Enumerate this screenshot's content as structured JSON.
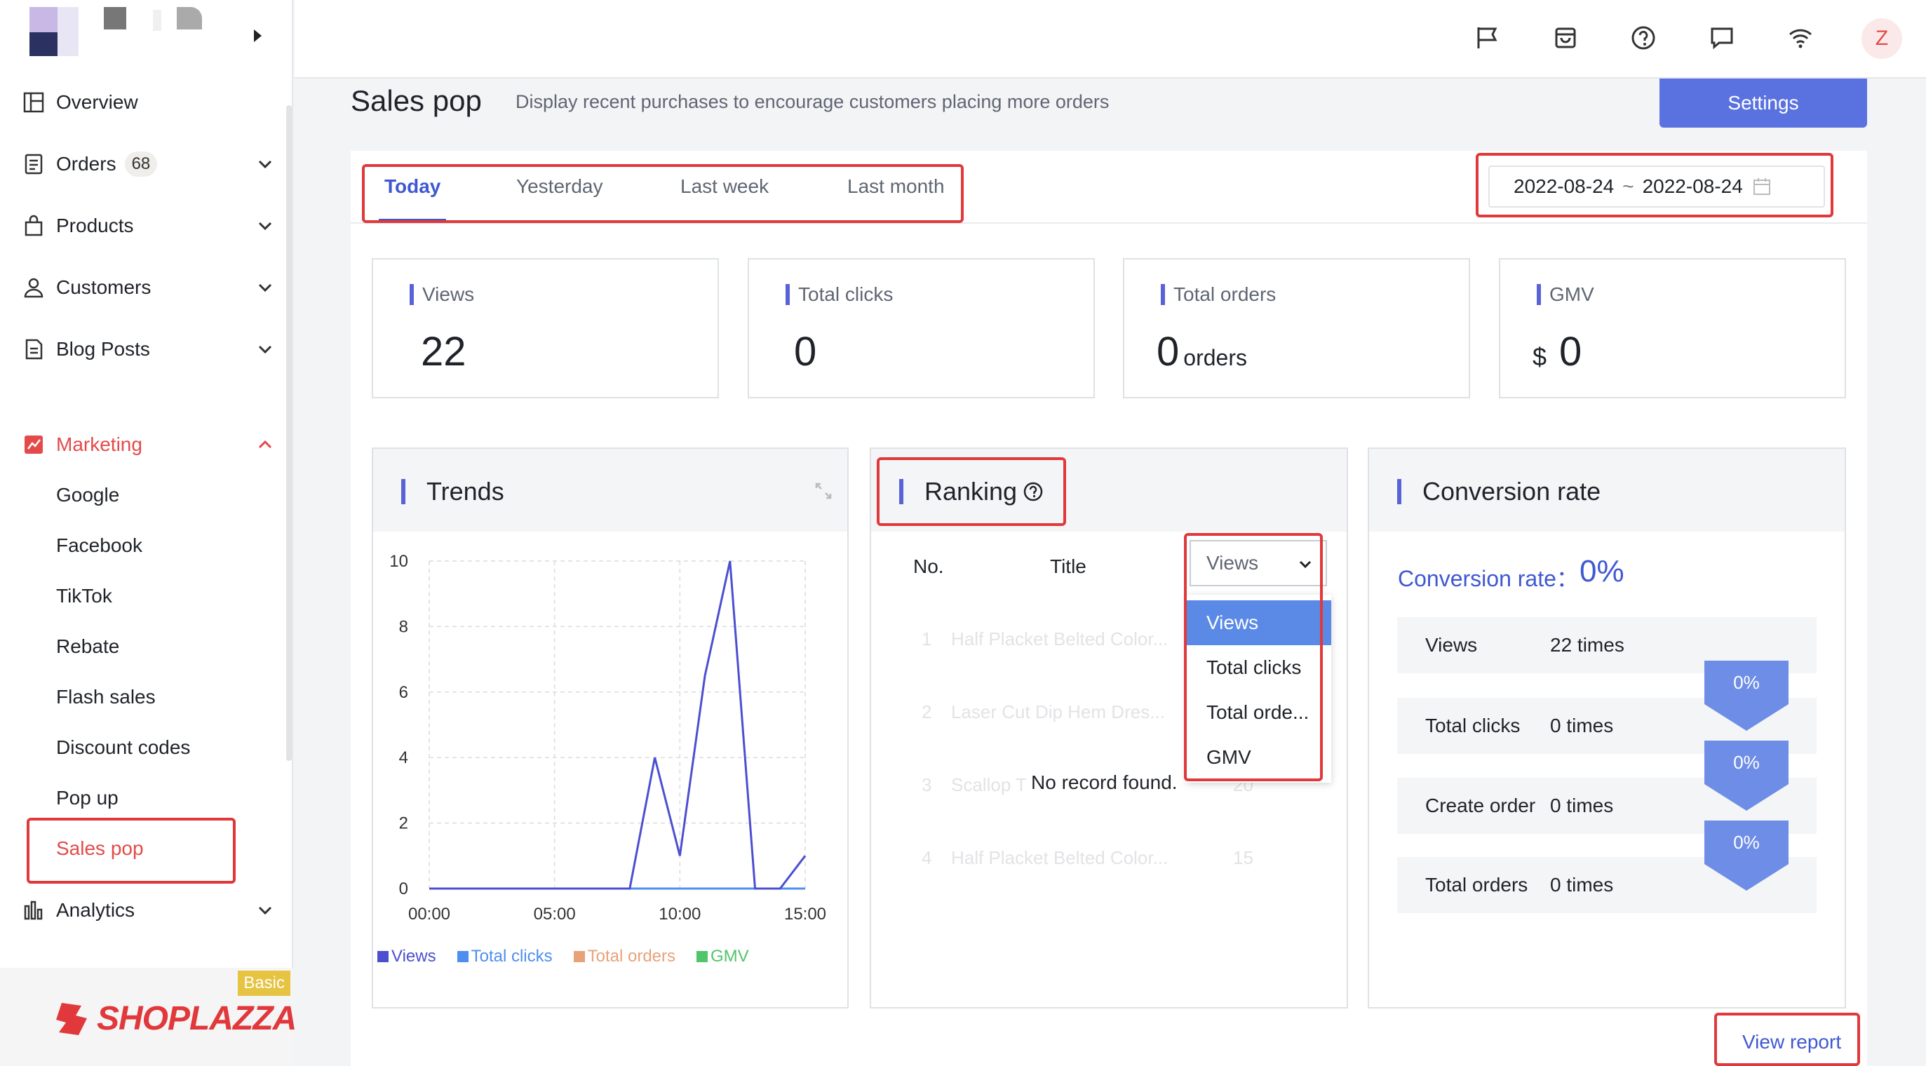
{
  "sidebar": {
    "items": [
      {
        "label": "Overview",
        "icon": "overview-icon"
      },
      {
        "label": "Orders",
        "badge": "68",
        "icon": "orders-icon"
      },
      {
        "label": "Products",
        "icon": "products-icon"
      },
      {
        "label": "Customers",
        "icon": "customers-icon"
      },
      {
        "label": "Blog Posts",
        "icon": "blog-icon"
      },
      {
        "label": "Marketing",
        "icon": "marketing-icon"
      },
      {
        "label": "Analytics",
        "icon": "analytics-icon"
      }
    ],
    "marketing_sub": [
      "Google",
      "Facebook",
      "TikTok",
      "Rebate",
      "Flash sales",
      "Discount codes",
      "Pop up",
      "Sales pop"
    ],
    "plan_badge": "Basic",
    "brand": "SHOPLAZZA"
  },
  "topbar": {
    "avatar_letter": "Z"
  },
  "page": {
    "title": "Sales pop",
    "description": "Display recent purchases to encourage customers placing more orders",
    "settings_label": "Settings"
  },
  "tabs": [
    "Today",
    "Yesterday",
    "Last week",
    "Last month"
  ],
  "date_range": {
    "start": "2022-08-24",
    "separator": "~",
    "end": "2022-08-24"
  },
  "stats": {
    "views": {
      "label": "Views",
      "value": "22"
    },
    "clicks": {
      "label": "Total clicks",
      "value": "0"
    },
    "orders": {
      "label": "Total orders",
      "value": "0",
      "unit": "orders"
    },
    "gmv": {
      "label": "GMV",
      "currency": "$",
      "value": "0"
    }
  },
  "trends": {
    "title": "Trends"
  },
  "chart_data": {
    "type": "line",
    "x": [
      "00:00",
      "01:00",
      "02:00",
      "03:00",
      "04:00",
      "05:00",
      "06:00",
      "07:00",
      "08:00",
      "09:00",
      "10:00",
      "11:00",
      "12:00",
      "13:00",
      "14:00",
      "15:00"
    ],
    "xticks": [
      "00:00",
      "05:00",
      "10:00",
      "15:00"
    ],
    "ylim": [
      0,
      10
    ],
    "yticks": [
      "0",
      "2",
      "4",
      "6",
      "8",
      "10"
    ],
    "series": [
      {
        "name": "Views",
        "color": "#4b4fd0",
        "values": [
          0,
          0,
          0,
          0,
          0,
          0,
          0,
          0,
          0,
          4,
          1,
          6.5,
          10,
          0,
          0,
          1
        ]
      },
      {
        "name": "Total clicks",
        "color": "#4e8ef0",
        "values": [
          0,
          0,
          0,
          0,
          0,
          0,
          0,
          0,
          0,
          0,
          0,
          0,
          0,
          0,
          0,
          0
        ]
      },
      {
        "name": "Total orders",
        "color": "#e8a27a",
        "values": [
          0,
          0,
          0,
          0,
          0,
          0,
          0,
          0,
          0,
          0,
          0,
          0,
          0,
          0,
          0,
          0
        ]
      },
      {
        "name": "GMV",
        "color": "#52c46a",
        "values": [
          0,
          0,
          0,
          0,
          0,
          0,
          0,
          0,
          0,
          0,
          0,
          0,
          0,
          0,
          0,
          0
        ]
      }
    ],
    "grid": true,
    "legend": "bottom"
  },
  "ranking": {
    "title": "Ranking",
    "col_no": "No.",
    "col_title": "Title",
    "select_value": "Views",
    "options": [
      "Views",
      "Total clicks",
      "Total orde...",
      "GMV"
    ],
    "rows": [
      {
        "no": "1",
        "title": "Half Placket Belted Color..."
      },
      {
        "no": "2",
        "title": "Laser Cut Dip Hem Dres..."
      },
      {
        "no": "3",
        "title": "Scallop T",
        "value": "20"
      },
      {
        "no": "4",
        "title": "Half Placket Belted Color...",
        "value": "15"
      }
    ],
    "empty_text": "No record found."
  },
  "conversion": {
    "title": "Conversion rate",
    "label": "Conversion rate：",
    "value": "0%",
    "funnel": [
      {
        "label": "Views",
        "value": "22 times"
      },
      {
        "label": "Total clicks",
        "value": "0 times"
      },
      {
        "label": "Create order",
        "value": "0 times"
      },
      {
        "label": "Total orders",
        "value": "0 times"
      }
    ],
    "step_rates": [
      "0%",
      "0%",
      "0%"
    ]
  },
  "footer": {
    "view_report": "View report"
  }
}
